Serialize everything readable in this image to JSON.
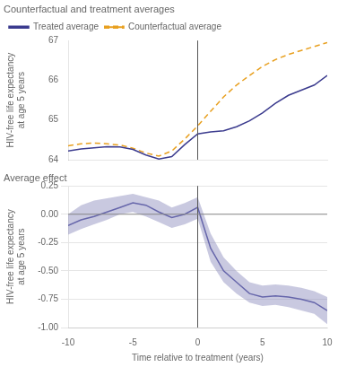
{
  "chart_data": [
    {
      "type": "line",
      "title": "Counterfactual and treatment averages",
      "y_label": "HIV-free life expectancy\nat age 5 years",
      "x": [
        -10,
        -9,
        -8,
        -7,
        -6,
        -5,
        -4,
        -3,
        -2,
        -1,
        0,
        1,
        2,
        3,
        4,
        5,
        6,
        7,
        8,
        9,
        10
      ],
      "series": [
        {
          "name": "Treated average",
          "color": "#3b3b8e",
          "line_style": "solid",
          "values": [
            64.22,
            64.27,
            64.3,
            64.33,
            64.32,
            64.26,
            64.12,
            64.02,
            64.08,
            64.38,
            64.65,
            64.7,
            64.73,
            64.83,
            64.98,
            65.18,
            65.42,
            65.62,
            65.75,
            65.88,
            66.12
          ]
        },
        {
          "name": "Counterfactual average",
          "color": "#e8a020",
          "line_style": "dashed",
          "values": [
            64.35,
            64.4,
            64.42,
            64.4,
            64.37,
            64.29,
            64.17,
            64.09,
            64.22,
            64.52,
            64.85,
            65.22,
            65.58,
            65.88,
            66.12,
            66.35,
            66.52,
            66.65,
            66.75,
            66.85,
            66.95
          ]
        }
      ],
      "reference_lines": [
        {
          "axis": "x",
          "value": 0,
          "color": "#555555"
        }
      ],
      "xlim": [
        -10,
        10
      ],
      "xticks": [
        -10,
        -5,
        0,
        5,
        10
      ],
      "ylim": [
        64.0,
        67.0
      ],
      "yticks": [
        64,
        65,
        66,
        67
      ],
      "grid": false,
      "legend": "upper left",
      "tick_labels": "y"
    },
    {
      "type": "line",
      "title": "Average effect",
      "x_label": "Time relative to treatment (years)",
      "y_label": "HIV-free life expectancy\nat age 5 years",
      "x": [
        -10,
        -9,
        -8,
        -7,
        -6,
        -5,
        -4,
        -3,
        -2,
        -1,
        0,
        1,
        2,
        3,
        4,
        5,
        6,
        7,
        8,
        9,
        10
      ],
      "series": [
        {
          "color": "#4c4c9e",
          "line_style": "solid",
          "values": [
            -0.1,
            -0.05,
            -0.02,
            0.02,
            0.06,
            0.1,
            0.08,
            0.02,
            -0.03,
            0.0,
            0.06,
            -0.3,
            -0.5,
            -0.6,
            -0.7,
            -0.73,
            -0.72,
            -0.73,
            -0.75,
            -0.78,
            -0.85
          ],
          "ci_low": [
            -0.18,
            -0.13,
            -0.09,
            -0.05,
            0.0,
            0.02,
            -0.02,
            -0.07,
            -0.12,
            -0.09,
            -0.04,
            -0.42,
            -0.6,
            -0.7,
            -0.78,
            -0.81,
            -0.8,
            -0.82,
            -0.85,
            -0.88,
            -0.97
          ],
          "ci_high": [
            0.0,
            0.08,
            0.12,
            0.14,
            0.16,
            0.18,
            0.15,
            0.12,
            0.06,
            0.1,
            0.15,
            -0.17,
            -0.38,
            -0.5,
            -0.6,
            -0.63,
            -0.62,
            -0.63,
            -0.65,
            -0.68,
            -0.73
          ],
          "ci_color": "#8888bb"
        }
      ],
      "reference_lines": [
        {
          "axis": "x",
          "value": 0,
          "color": "#555555"
        },
        {
          "axis": "y",
          "value": 0,
          "color": "#888888"
        }
      ],
      "xlim": [
        -10,
        10
      ],
      "xticks": [
        -10,
        -5,
        0,
        5,
        10
      ],
      "ylim": [
        -1.0,
        0.25
      ],
      "yticks": [
        {
          "value": -1.0,
          "label": "-1.00"
        },
        {
          "value": -0.75,
          "label": "-0.75"
        },
        {
          "value": -0.5,
          "label": "-0.50"
        },
        {
          "value": -0.25,
          "label": "-0.25"
        },
        {
          "value": 0.0,
          "label": "0.00"
        },
        0.25
      ],
      "grid": "y",
      "tick_labels": true
    }
  ]
}
